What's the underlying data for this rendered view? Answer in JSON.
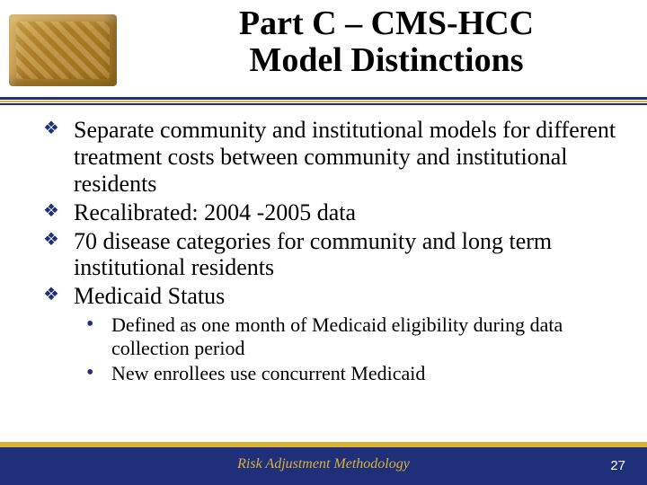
{
  "title": {
    "line1": "Part C – CMS-HCC",
    "line2": "Model Distinctions",
    "fontsize": 38,
    "color": "#000000"
  },
  "logo": {
    "name": "gold-bar-stack"
  },
  "underline": {
    "color_primary": "#1f2f7a",
    "color_accent": "#d9b23a"
  },
  "bullets": {
    "style": "diamond",
    "color": "#1f2f7a",
    "fontsize": 26,
    "items": [
      "Separate community and institutional models for different treatment costs between community and institutional residents",
      "Recalibrated: 2004 -2005 data",
      "70 disease categories for community and long term institutional residents",
      "Medicaid Status"
    ]
  },
  "sub_bullets": {
    "style": "dot",
    "color": "#1f2f7a",
    "fontsize": 22,
    "items": [
      "Defined as one month of Medicaid eligibility during data collection period",
      "New enrollees use concurrent Medicaid"
    ]
  },
  "footer": {
    "text": "Risk Adjustment Methodology",
    "text_color": "#d9b23a",
    "fontsize": 16,
    "page_number": "27",
    "page_color": "#ffffff",
    "page_fontsize": 15,
    "background": "#1f2f7a",
    "strip_color": "#d9b23a"
  },
  "background_color": "#ffffff"
}
